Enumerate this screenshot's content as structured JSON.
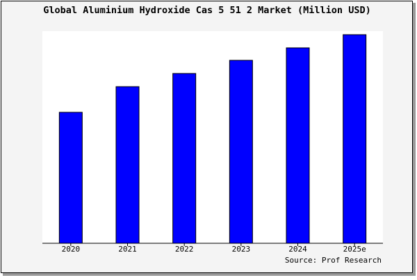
{
  "chart_data": {
    "type": "bar",
    "title": "Global Aluminium Hydroxide Cas 5 51 2 Market (Million USD)",
    "categories": [
      "2020",
      "2021",
      "2022",
      "2023",
      "2024",
      "2025e"
    ],
    "values": [
      189,
      226,
      245,
      264,
      282,
      301
    ],
    "color": "#0000ff",
    "ylim": [
      0,
      306
    ],
    "source": "Source: Prof Research"
  }
}
